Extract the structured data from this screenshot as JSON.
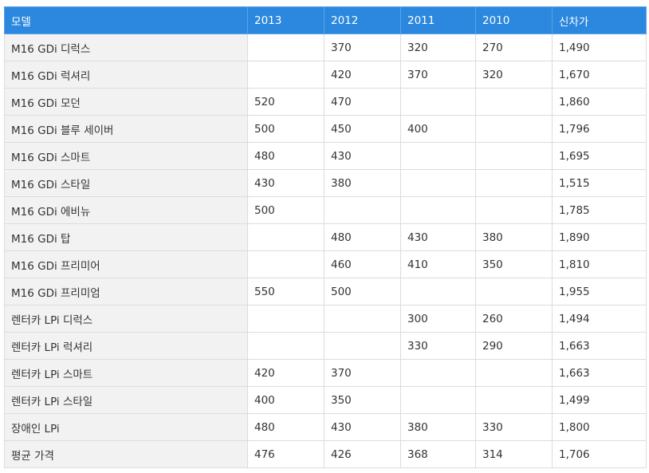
{
  "table": {
    "header": [
      "모델",
      "2013",
      "2012",
      "2011",
      "2010",
      "신차가"
    ],
    "rows": [
      [
        "M16 GDi 디럭스",
        null,
        "370",
        "320",
        "270",
        "1,490"
      ],
      [
        "M16 GDi 럭셔리",
        null,
        "420",
        "370",
        "320",
        "1,670"
      ],
      [
        "M16 GDi 모던",
        "520",
        "470",
        null,
        null,
        "1,860"
      ],
      [
        "M16 GDi 블루 세이버",
        "500",
        "450",
        "400",
        null,
        "1,796"
      ],
      [
        "M16 GDi 스마트",
        "480",
        "430",
        null,
        null,
        "1,695"
      ],
      [
        "M16 GDi 스타일",
        "430",
        "380",
        null,
        null,
        "1,515"
      ],
      [
        "M16 GDi 에비뉴",
        "500",
        null,
        null,
        null,
        "1,785"
      ],
      [
        "M16 GDi 탑",
        null,
        "480",
        "430",
        "380",
        "1,890"
      ],
      [
        "M16 GDi 프리미어",
        null,
        "460",
        "410",
        "350",
        "1,810"
      ],
      [
        "M16 GDi 프리미엄",
        "550",
        "500",
        null,
        null,
        "1,955"
      ],
      [
        "렌터카 LPi 디럭스",
        null,
        null,
        "300",
        "260",
        "1,494"
      ],
      [
        "렌터카 LPi 럭셔리",
        null,
        null,
        "330",
        "290",
        "1,663"
      ],
      [
        "렌터카 LPi 스마트",
        "420",
        "370",
        null,
        null,
        "1,663"
      ],
      [
        "렌터카 LPi 스타일",
        "400",
        "350",
        null,
        null,
        "1,499"
      ],
      [
        "장애인 LPi",
        "480",
        "430",
        "380",
        "330",
        "1,800"
      ],
      [
        "평균 가격",
        "476",
        "426",
        "368",
        "314",
        "1,706"
      ]
    ]
  }
}
